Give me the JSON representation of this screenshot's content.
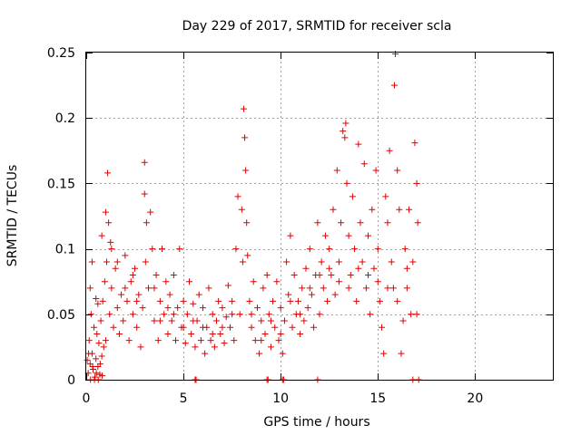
{
  "chart_data": {
    "type": "scatter",
    "title": "Day 229 of 2017, SRMTID for receiver scla",
    "xlabel": "GPS time / hours",
    "ylabel": "SRMTID / TECUs",
    "xlim": [
      0,
      24
    ],
    "ylim": [
      0,
      0.25
    ],
    "xticks": [
      0,
      5,
      10,
      15,
      20
    ],
    "xtick_labels": [
      "0",
      "5",
      "10",
      "15",
      "20"
    ],
    "yticks": [
      0,
      0.05,
      0.1,
      0.15,
      0.2,
      0.25
    ],
    "ytick_labels": [
      "0",
      "0.05",
      "0.1",
      "0.15",
      "0.2",
      "0.25"
    ],
    "grid": true,
    "marker": "+",
    "color": "#e00000",
    "series": [
      {
        "points": [
          [
            0.1,
            0.005
          ],
          [
            0.15,
            0.03
          ],
          [
            0.2,
            0.012
          ],
          [
            0.25,
            0.05
          ],
          [
            0.3,
            0.02
          ],
          [
            0.35,
            0.008
          ],
          [
            0.4,
            0.04
          ],
          [
            0.45,
            0.002
          ],
          [
            0.5,
            0.016
          ],
          [
            0.55,
            0.035
          ],
          [
            0.6,
            0.01
          ],
          [
            0.65,
            0.028
          ],
          [
            0.7,
            0.004
          ],
          [
            0.75,
            0.045
          ],
          [
            0.8,
            0.018
          ],
          [
            0.85,
            0.06
          ],
          [
            0.9,
            0.025
          ],
          [
            0.95,
            0.075
          ],
          [
            1.0,
            0.03
          ],
          [
            1.05,
            0.09
          ],
          [
            1.1,
            0.158
          ],
          [
            1.15,
            0.12
          ],
          [
            1.2,
            0.05
          ],
          [
            1.25,
            0.105
          ],
          [
            1.3,
            0.07
          ],
          [
            1.4,
            0.04
          ],
          [
            1.5,
            0.085
          ],
          [
            1.6,
            0.055
          ],
          [
            1.7,
            0.035
          ],
          [
            1.8,
            0.065
          ],
          [
            1.9,
            0.045
          ],
          [
            2.0,
            0.095
          ],
          [
            2.1,
            0.06
          ],
          [
            2.2,
            0.03
          ],
          [
            2.3,
            0.075
          ],
          [
            2.4,
            0.05
          ],
          [
            2.5,
            0.085
          ],
          [
            2.6,
            0.04
          ],
          [
            2.7,
            0.065
          ],
          [
            2.8,
            0.025
          ],
          [
            2.9,
            0.055
          ],
          [
            3.0,
            0.166
          ],
          [
            3.0,
            0.142
          ],
          [
            3.05,
            0.09
          ],
          [
            3.1,
            0.12
          ],
          [
            3.2,
            0.07
          ],
          [
            3.3,
            0.128
          ],
          [
            3.4,
            0.1
          ],
          [
            3.5,
            0.045
          ],
          [
            3.6,
            0.08
          ],
          [
            3.7,
            0.03
          ],
          [
            3.8,
            0.06
          ],
          [
            3.9,
            0.1
          ],
          [
            4.0,
            0.05
          ],
          [
            4.1,
            0.075
          ],
          [
            4.2,
            0.035
          ],
          [
            4.3,
            0.065
          ],
          [
            4.4,
            0.045
          ],
          [
            4.5,
            0.08
          ],
          [
            4.6,
            0.03
          ],
          [
            4.7,
            0.055
          ],
          [
            4.8,
            0.1
          ],
          [
            4.9,
            0.04
          ],
          [
            5.0,
            0.06
          ],
          [
            5.1,
            0.028
          ],
          [
            5.2,
            0.05
          ],
          [
            5.3,
            0.075
          ],
          [
            5.4,
            0.035
          ],
          [
            5.5,
            0.058
          ],
          [
            5.6,
            0.025
          ],
          [
            5.7,
            0.045
          ],
          [
            5.8,
            0.065
          ],
          [
            5.9,
            0.03
          ],
          [
            6.0,
            0.055
          ],
          [
            6.1,
            0.02
          ],
          [
            6.2,
            0.04
          ],
          [
            6.3,
            0.07
          ],
          [
            6.4,
            0.03
          ],
          [
            6.5,
            0.05
          ],
          [
            6.6,
            0.025
          ],
          [
            6.7,
            0.045
          ],
          [
            6.8,
            0.06
          ],
          [
            6.9,
            0.035
          ],
          [
            7.0,
            0.055
          ],
          [
            7.1,
            0.028
          ],
          [
            7.2,
            0.048
          ],
          [
            7.3,
            0.072
          ],
          [
            7.4,
            0.04
          ],
          [
            7.5,
            0.06
          ],
          [
            7.6,
            0.03
          ],
          [
            7.7,
            0.1
          ],
          [
            7.8,
            0.14
          ],
          [
            7.9,
            0.05
          ],
          [
            8.0,
            0.13
          ],
          [
            8.05,
            0.09
          ],
          [
            8.1,
            0.207
          ],
          [
            8.15,
            0.185
          ],
          [
            8.2,
            0.16
          ],
          [
            8.25,
            0.12
          ],
          [
            8.3,
            0.095
          ],
          [
            8.4,
            0.06
          ],
          [
            8.5,
            0.04
          ],
          [
            8.6,
            0.075
          ],
          [
            8.7,
            0.03
          ],
          [
            8.8,
            0.055
          ],
          [
            8.9,
            0.02
          ],
          [
            9.0,
            0.045
          ],
          [
            9.1,
            0.07
          ],
          [
            9.2,
            0.035
          ],
          [
            9.3,
            0.08
          ],
          [
            9.4,
            0.05
          ],
          [
            9.5,
            0.025
          ],
          [
            9.6,
            0.06
          ],
          [
            9.7,
            0.04
          ],
          [
            9.8,
            0.075
          ],
          [
            9.9,
            0.03
          ],
          [
            10.0,
            0.055
          ],
          [
            10.1,
            0.02
          ],
          [
            10.2,
            0.045
          ],
          [
            10.3,
            0.09
          ],
          [
            10.4,
            0.065
          ],
          [
            10.5,
            0.11
          ],
          [
            10.6,
            0.04
          ],
          [
            10.7,
            0.08
          ],
          [
            10.8,
            0.05
          ],
          [
            10.9,
            0.06
          ],
          [
            11.0,
            0.035
          ],
          [
            11.1,
            0.07
          ],
          [
            11.2,
            0.045
          ],
          [
            11.3,
            0.085
          ],
          [
            11.4,
            0.055
          ],
          [
            11.5,
            0.1
          ],
          [
            11.6,
            0.065
          ],
          [
            11.7,
            0.04
          ],
          [
            11.8,
            0.08
          ],
          [
            11.9,
            0.12
          ],
          [
            12.0,
            0.05
          ],
          [
            12.1,
            0.09
          ],
          [
            12.2,
            0.07
          ],
          [
            12.3,
            0.11
          ],
          [
            12.4,
            0.06
          ],
          [
            12.5,
            0.1
          ],
          [
            12.6,
            0.08
          ],
          [
            12.7,
            0.13
          ],
          [
            12.8,
            0.065
          ],
          [
            12.9,
            0.16
          ],
          [
            13.0,
            0.09
          ],
          [
            13.1,
            0.12
          ],
          [
            13.2,
            0.19
          ],
          [
            13.3,
            0.185
          ],
          [
            13.35,
            0.196
          ],
          [
            13.4,
            0.15
          ],
          [
            13.5,
            0.11
          ],
          [
            13.6,
            0.08
          ],
          [
            13.7,
            0.14
          ],
          [
            13.8,
            0.1
          ],
          [
            13.9,
            0.06
          ],
          [
            14.0,
            0.18
          ],
          [
            14.1,
            0.12
          ],
          [
            14.2,
            0.09
          ],
          [
            14.3,
            0.165
          ],
          [
            14.4,
            0.07
          ],
          [
            14.5,
            0.11
          ],
          [
            14.6,
            0.05
          ],
          [
            14.7,
            0.13
          ],
          [
            14.8,
            0.085
          ],
          [
            14.9,
            0.16
          ],
          [
            15.0,
            0.1
          ],
          [
            15.1,
            0.06
          ],
          [
            15.2,
            0.04
          ],
          [
            15.3,
            0.02
          ],
          [
            15.4,
            0.14
          ],
          [
            15.5,
            0.12
          ],
          [
            15.6,
            0.175
          ],
          [
            15.7,
            0.09
          ],
          [
            15.8,
            0.07
          ],
          [
            15.85,
            0.225
          ],
          [
            15.9,
            0.249
          ],
          [
            16.0,
            0.16
          ],
          [
            16.1,
            0.13
          ],
          [
            16.2,
            0.02
          ],
          [
            16.3,
            0.045
          ],
          [
            16.4,
            0.1
          ],
          [
            16.5,
            0.07
          ],
          [
            16.6,
            0.13
          ],
          [
            16.7,
            0.05
          ],
          [
            16.8,
            0.09
          ],
          [
            16.9,
            0.181
          ],
          [
            17.0,
            0.15
          ],
          [
            17.05,
            0.12
          ],
          [
            0.2,
            0.07
          ],
          [
            0.3,
            0.09
          ],
          [
            0.5,
            0.062
          ],
          [
            0.6,
            0.058
          ],
          [
            0.8,
            0.11
          ],
          [
            1.0,
            0.128
          ],
          [
            1.3,
            0.1
          ],
          [
            1.6,
            0.09
          ],
          [
            2.0,
            0.07
          ],
          [
            2.4,
            0.08
          ],
          [
            2.6,
            0.06
          ],
          [
            3.5,
            0.07
          ],
          [
            3.8,
            0.045
          ],
          [
            4.2,
            0.055
          ],
          [
            4.5,
            0.05
          ],
          [
            5.0,
            0.04
          ],
          [
            5.5,
            0.045
          ],
          [
            6.0,
            0.04
          ],
          [
            6.5,
            0.035
          ],
          [
            7.0,
            0.04
          ],
          [
            7.5,
            0.05
          ],
          [
            8.5,
            0.05
          ],
          [
            9.0,
            0.03
          ],
          [
            9.5,
            0.045
          ],
          [
            10.0,
            0.035
          ],
          [
            10.5,
            0.06
          ],
          [
            11.0,
            0.05
          ],
          [
            11.5,
            0.07
          ],
          [
            12.0,
            0.08
          ],
          [
            12.5,
            0.085
          ],
          [
            13.0,
            0.075
          ],
          [
            13.5,
            0.07
          ],
          [
            14.0,
            0.085
          ],
          [
            14.5,
            0.08
          ],
          [
            15.0,
            0.075
          ],
          [
            15.5,
            0.07
          ],
          [
            16.0,
            0.06
          ],
          [
            16.5,
            0.085
          ],
          [
            17.0,
            0.05
          ],
          [
            0.05,
            0.015
          ],
          [
            0.12,
            0.02
          ],
          [
            0.22,
            0.0
          ],
          [
            0.33,
            0.01
          ],
          [
            0.42,
            0.0
          ],
          [
            0.52,
            0.005
          ],
          [
            0.62,
            0.0
          ],
          [
            0.72,
            0.012
          ],
          [
            0.82,
            0.003
          ],
          [
            5.6,
            0.0
          ],
          [
            5.65,
            0.0
          ],
          [
            9.3,
            0.0
          ],
          [
            9.35,
            0.0
          ],
          [
            10.1,
            0.0
          ],
          [
            10.15,
            0.0
          ],
          [
            11.9,
            0.0
          ],
          [
            16.8,
            0.0
          ],
          [
            17.1,
            0.0
          ]
        ]
      }
    ]
  }
}
